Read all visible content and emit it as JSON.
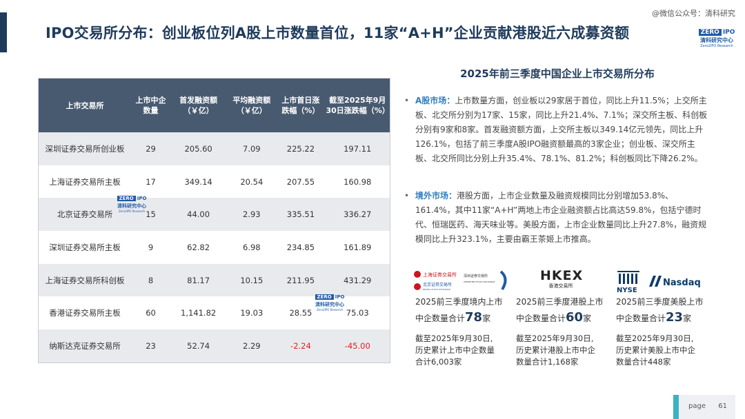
{
  "header": {
    "title": "IPO交易所分布：创业板位列A股上市数量首位，11家“A+H”企业贡献港股近六成募资额",
    "wechat": "@微信公众号：清科研究"
  },
  "brand": {
    "zero": "ZERO",
    "ipo": "IPO",
    "cn": "清科研究中心",
    "en": "Zero2IPO Research"
  },
  "table": {
    "headers": [
      "上市交易所",
      "上市中企数量",
      "首发融资额（￥亿）",
      "平均融资额（￥亿）",
      "上市首日涨跌幅（%）",
      "截至2025年9月30日涨跌幅（%）"
    ],
    "rows": [
      [
        "深圳证券交易所创业板",
        "29",
        "205.60",
        "7.09",
        "225.22",
        "197.11"
      ],
      [
        "上海证券交易所主板",
        "17",
        "349.14",
        "20.54",
        "207.55",
        "160.98"
      ],
      [
        "北京证券交易所",
        "15",
        "44.00",
        "2.93",
        "335.51",
        "336.27"
      ],
      [
        "深圳证券交易所主板",
        "9",
        "62.82",
        "6.98",
        "234.85",
        "161.89"
      ],
      [
        "上海证券交易所科创板",
        "8",
        "81.17",
        "10.15",
        "211.95",
        "431.29"
      ],
      [
        "香港证券交易所主板",
        "60",
        "1,141.82",
        "19.03",
        "28.55",
        "75.03"
      ],
      [
        "纳斯达克证券交易所",
        "23",
        "52.74",
        "2.29",
        "-2.24",
        "-45.00"
      ]
    ]
  },
  "right": {
    "title": "2025年前三季度中国企业上市交易所分布",
    "a_label": "A股市场：",
    "a_text": "上市数量方面，创业板以29家居于首位，同比上升11.5%；上交所主板、北交所分别为17家、15家，同比上升21.4%、7.1%；深交所主板、科创板分别有9家和8家。首发融资额方面，上交所主板以349.14亿元领先，同比上升126.1%，包括了前三季度A股IPO融资额最高的3家企业；创业板、深交所主板、北交所同比分别上升35.4%、78.1%、81.2%；科创板同比下降26.2%。",
    "o_label": "境外市场：",
    "o_text": "港股方面，上市企业数量及融资规模同比分别增加53.8%、161.4%，其中11家“A+H”两地上市企业融资额占比高达59.8%，包括宁德时代、恒瑞医药、海天味业等。美股方面，上市企业数量同比上升27.8%，融资规模同比上升323.1%，主要由霸王茶姬上市推高。"
  },
  "logos": {
    "sse": "上海证券交易所",
    "szse": "深圳证券交易所",
    "szse_en": "SHENZHEN STOCK EXCHANGE",
    "bse": "北京证券交易所",
    "bse_en": "BEIJING STOCK EXCHANGE",
    "hkex": "HKEX",
    "hkex_cn": "香港交易所",
    "nyse": "NYSE",
    "nasdaq": "Nasdaq"
  },
  "cols": [
    {
      "l1": "2025前三季度境内上市",
      "pre": "中企数量合计",
      "num": "78",
      "post": "家",
      "l3a": "截至2025年9月30日,",
      "l3b": "历史累计上市中企数量",
      "l3c": "合计6,003家"
    },
    {
      "l1": "2025前三季度港股上市",
      "pre": "中企数量合计",
      "num": "60",
      "post": "家",
      "l3a": "截至2025年9月30日,",
      "l3b": "历史累计港股上市中企",
      "l3c": "数量合计1,168家"
    },
    {
      "l1": "2025前三季度美股上市",
      "pre": "中企数量合计",
      "num": "23",
      "post": "家",
      "l3a": "截至2025年9月30日,",
      "l3b": "历史累计美股上市中企",
      "l3c": "数量合计448家"
    }
  ],
  "footer": {
    "page_label": "page",
    "page_num": "61"
  }
}
